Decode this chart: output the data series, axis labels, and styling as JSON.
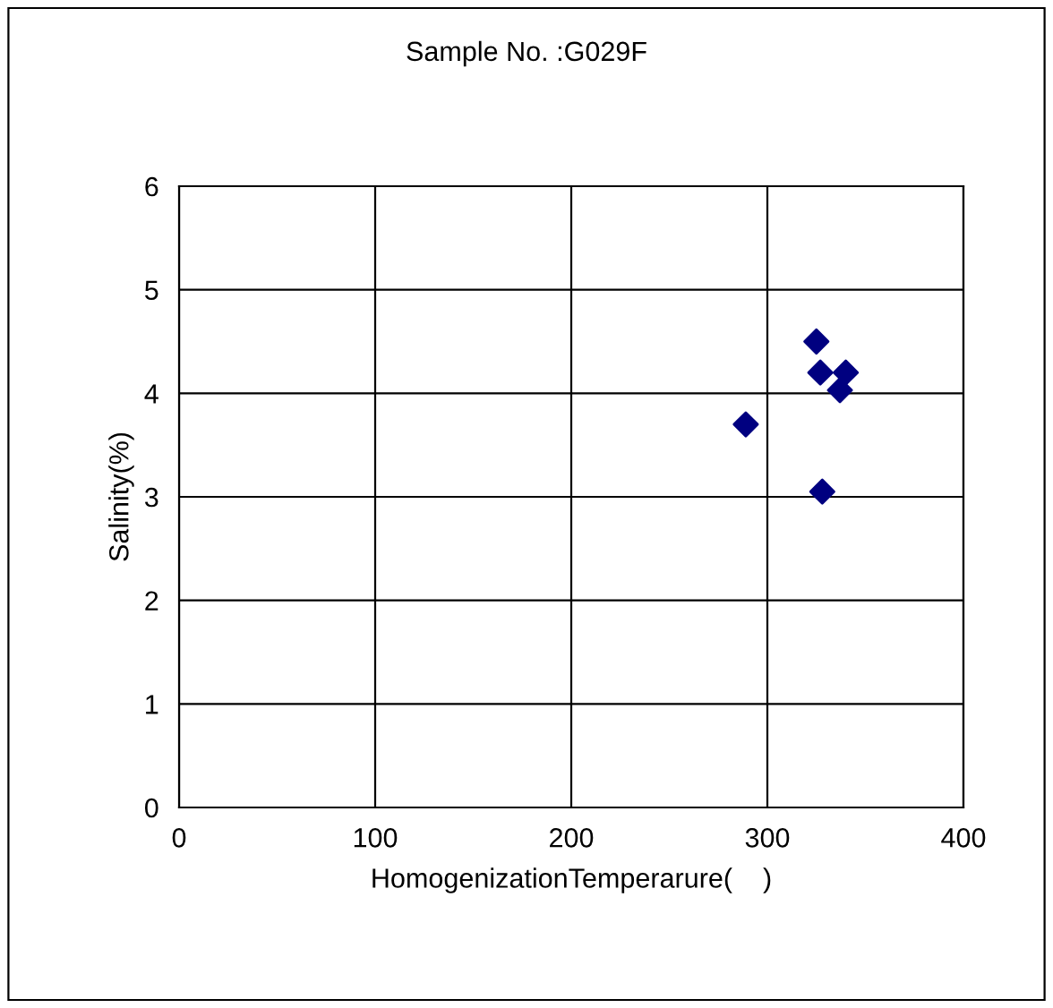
{
  "chart_data": {
    "type": "scatter",
    "title": "Sample No. :G029F",
    "xlabel": "HomogenizationTemperarure(    )",
    "ylabel": "Salinity(%)",
    "x": [
      289,
      325,
      327,
      340,
      337,
      328
    ],
    "series": [
      {
        "color": "#000080",
        "values": [
          3.7,
          4.5,
          4.2,
          4.2,
          4.03,
          3.05
        ]
      }
    ],
    "xlim": [
      0,
      400
    ],
    "ylim": [
      0,
      6
    ],
    "xticks": [
      0,
      100,
      200,
      300,
      400
    ],
    "yticks": [
      0,
      1,
      2,
      3,
      4,
      5,
      6
    ],
    "grid": true,
    "marker": "diamond",
    "legend": false
  }
}
